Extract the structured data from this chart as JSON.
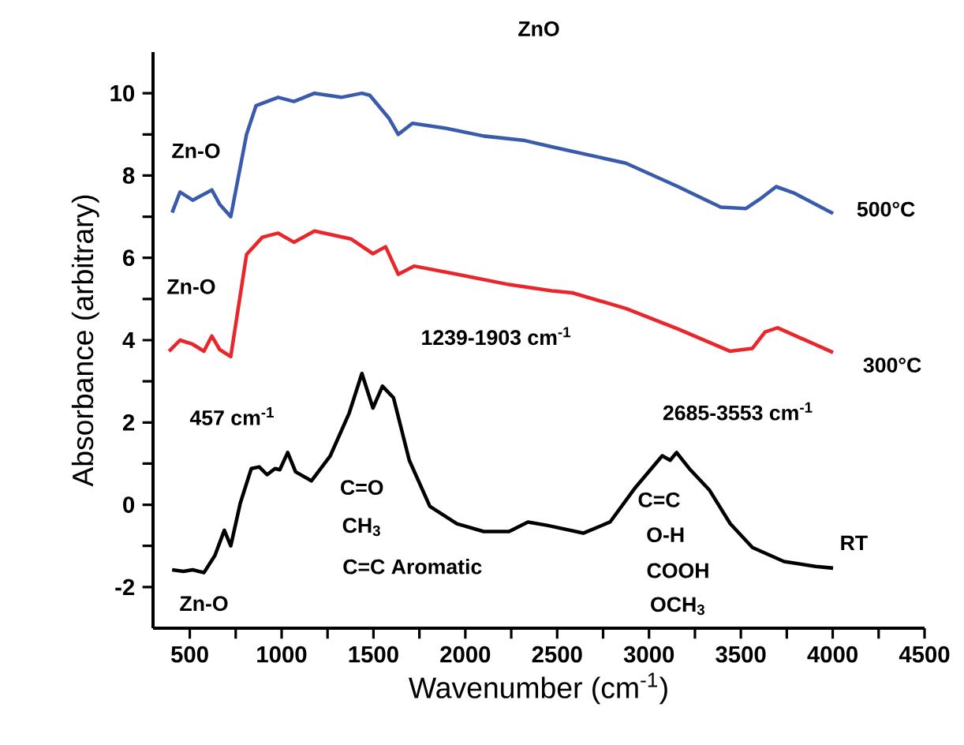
{
  "chart_data": {
    "type": "line",
    "title": "ZnO",
    "xlabel": "Wavenumber (cm$^{-1}$)",
    "ylabel": "Absorbance (arbitrary)",
    "xlim": [
      300,
      4500
    ],
    "ylim": [
      -3,
      11
    ],
    "xticks": [
      500,
      {
        "value": 750,
        "label": null
      },
      1000,
      {
        "value": 1250,
        "label": null
      },
      1500,
      {
        "value": 1750,
        "label": null
      },
      2000,
      {
        "value": 2250,
        "label": null
      },
      2500,
      {
        "value": 2750,
        "label": null
      },
      3000,
      {
        "value": 3250,
        "label": null
      },
      3500,
      {
        "value": 3750,
        "label": null
      },
      4000,
      {
        "value": 4250,
        "label": null
      },
      4500
    ],
    "yticks": [
      -2,
      {
        "value": -1,
        "label": null
      },
      0,
      {
        "value": 1,
        "label": null
      },
      2,
      {
        "value": 3,
        "label": null
      },
      4,
      {
        "value": 5,
        "label": null
      },
      6,
      {
        "value": 7,
        "label": null
      },
      8,
      {
        "value": 9,
        "label": null
      },
      10
    ],
    "grid": false,
    "legend": false,
    "marker": "none",
    "line_style": "solid",
    "series": [
      {
        "name": "500°C",
        "color": "#3a5bab",
        "x": [
          404,
          447,
          516,
          620,
          663,
          723,
          809,
          861,
          981,
          1067,
          1179,
          1325,
          1437,
          1480,
          1583,
          1635,
          1712,
          1893,
          2100,
          2324,
          2470,
          2874,
          3158,
          3391,
          3528,
          3614,
          3692,
          3787,
          4002
        ],
        "values": [
          7.1,
          7.6,
          7.4,
          7.65,
          7.3,
          7.0,
          9.0,
          9.7,
          9.9,
          9.8,
          10.0,
          9.9,
          10.0,
          9.95,
          9.4,
          9.0,
          9.27,
          9.15,
          8.96,
          8.85,
          8.7,
          8.3,
          7.73,
          7.23,
          7.2,
          7.46,
          7.73,
          7.58,
          7.08
        ]
      },
      {
        "name": "300°C",
        "color": "#e8262b",
        "x": [
          387,
          447,
          516,
          577,
          620,
          663,
          723,
          809,
          895,
          981,
          1067,
          1179,
          1377,
          1497,
          1566,
          1635,
          1721,
          1954,
          2238,
          2470,
          2582,
          2874,
          3158,
          3442,
          3563,
          3632,
          3700,
          4002
        ],
        "values": [
          3.73,
          4.0,
          3.9,
          3.73,
          4.1,
          3.77,
          3.6,
          6.08,
          6.5,
          6.6,
          6.38,
          6.65,
          6.46,
          6.1,
          6.27,
          5.6,
          5.8,
          5.6,
          5.35,
          5.2,
          5.15,
          4.77,
          4.27,
          3.73,
          3.8,
          4.2,
          4.3,
          3.7
        ]
      },
      {
        "name": "RT",
        "color": "#000000",
        "x": [
          404,
          465,
          516,
          577,
          637,
          688,
          723,
          775,
          835,
          878,
          921,
          964,
          990,
          1033,
          1076,
          1162,
          1265,
          1368,
          1437,
          1497,
          1549,
          1609,
          1695,
          1807,
          1954,
          2100,
          2238,
          2341,
          2444,
          2642,
          2788,
          2926,
          3072,
          3115,
          3150,
          3219,
          3330,
          3442,
          3563,
          3735,
          3907,
          4002
        ],
        "values": [
          -1.58,
          -1.62,
          -1.58,
          -1.65,
          -1.23,
          -0.62,
          -1.0,
          0.04,
          0.88,
          0.92,
          0.73,
          0.88,
          0.85,
          1.27,
          0.8,
          0.58,
          1.19,
          2.23,
          3.19,
          2.35,
          2.88,
          2.6,
          1.08,
          -0.04,
          -0.46,
          -0.65,
          -0.65,
          -0.42,
          -0.5,
          -0.69,
          -0.42,
          0.42,
          1.19,
          1.08,
          1.27,
          0.88,
          0.35,
          -0.46,
          -1.04,
          -1.38,
          -1.5,
          -1.54
        ]
      }
    ],
    "annotations": [
      "Zn-O",
      "Zn-O",
      "1239-1903 cm$^{-1}$",
      "457 cm$^{-1}$",
      "2685-3553 cm$^{-1}$",
      "C=O",
      "C=C",
      "CH$_{3}$",
      "O-H",
      "C=C Aromatic",
      "COOH",
      "Zn-O",
      "OCH$_{3}$"
    ]
  }
}
